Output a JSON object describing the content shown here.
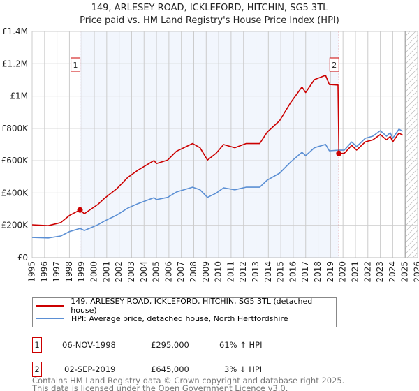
{
  "title_line1": "149, ARLESEY ROAD, ICKLEFORD, HITCHIN, SG5 3TL",
  "title_line2": "Price paid vs. HM Land Registry's House Price Index (HPI)",
  "chart_data": {
    "type": "line",
    "xlim": [
      1995,
      2026
    ],
    "ylim": [
      0,
      1400000
    ],
    "x_ticks": [
      1995,
      1996,
      1997,
      1998,
      1999,
      2000,
      2001,
      2002,
      2003,
      2004,
      2005,
      2006,
      2007,
      2008,
      2009,
      2010,
      2011,
      2012,
      2013,
      2014,
      2015,
      2016,
      2017,
      2018,
      2019,
      2020,
      2021,
      2022,
      2023,
      2024,
      2025,
      2026
    ],
    "y_ticks": [
      {
        "v": 0,
        "label": "£0"
      },
      {
        "v": 200000,
        "label": "£200K"
      },
      {
        "v": 400000,
        "label": "£400K"
      },
      {
        "v": 600000,
        "label": "£600K"
      },
      {
        "v": 800000,
        "label": "£800K"
      },
      {
        "v": 1000000,
        "label": "£1M"
      },
      {
        "v": 1200000,
        "label": "£1.2M"
      },
      {
        "v": 1400000,
        "label": "£1.4M"
      }
    ],
    "grid": true,
    "shaded_period": [
      1998.85,
      2019.67
    ],
    "forecast_hatch_from": 2025.0,
    "colors": {
      "price": "#cc0000",
      "hpi": "#5b8fd4",
      "shade": "#f2f6fd",
      "vline": "#e06060"
    },
    "series": [
      {
        "name": "149, ARLESEY ROAD, ICKLEFORD, HITCHIN, SG5 3TL (detached house)",
        "key": "price",
        "x": [
          1995.0,
          1996.3,
          1997.3,
          1998.0,
          1998.85,
          1999.2,
          2000.3,
          2000.8,
          2001.8,
          2002.7,
          2003.5,
          2004.8,
          2005.0,
          2005.9,
          2006.6,
          2007.9,
          2008.5,
          2009.1,
          2009.8,
          2010.4,
          2011.3,
          2012.2,
          2013.3,
          2013.9,
          2014.9,
          2015.8,
          2016.7,
          2017.0,
          2017.7,
          2018.6,
          2018.9,
          2019.6,
          2019.67,
          2020.1,
          2020.7,
          2021.1,
          2021.8,
          2022.4,
          2023.0,
          2023.5,
          2023.8,
          2024.0,
          2024.5,
          2024.8
        ],
        "y": [
          203000,
          198000,
          217000,
          261000,
          295000,
          272000,
          330000,
          366000,
          426000,
          497000,
          541000,
          601000,
          582000,
          604000,
          658000,
          706000,
          680000,
          604000,
          646000,
          700000,
          680000,
          706000,
          706000,
          776000,
          847000,
          961000,
          1056000,
          1022000,
          1102000,
          1128000,
          1071000,
          1068000,
          645000,
          645000,
          695000,
          666000,
          717000,
          729000,
          762000,
          729000,
          750000,
          717000,
          771000,
          758000
        ]
      },
      {
        "name": "HPI: Average price, detached house, North Hertfordshire",
        "key": "hpi",
        "x": [
          1995.0,
          1996.3,
          1997.3,
          1998.0,
          1998.85,
          1999.2,
          2000.3,
          2000.8,
          2001.8,
          2002.7,
          2003.5,
          2004.8,
          2005.0,
          2005.9,
          2006.6,
          2007.9,
          2008.5,
          2009.1,
          2009.8,
          2010.4,
          2011.3,
          2012.2,
          2013.3,
          2013.9,
          2014.9,
          2015.8,
          2016.7,
          2017.0,
          2017.7,
          2018.6,
          2018.9,
          2019.67,
          2020.1,
          2020.7,
          2021.1,
          2021.8,
          2022.4,
          2023.0,
          2023.5,
          2023.8,
          2024.0,
          2024.5,
          2024.8
        ],
        "y": [
          125000,
          122000,
          134000,
          161000,
          181000,
          168000,
          204000,
          226000,
          263000,
          307000,
          334000,
          371000,
          359000,
          373000,
          406000,
          436000,
          420000,
          373000,
          399000,
          432000,
          420000,
          436000,
          436000,
          479000,
          523000,
          593000,
          652000,
          631000,
          680000,
          701000,
          661000,
          665000,
          665000,
          716000,
          687000,
          739000,
          752000,
          786000,
          752000,
          773000,
          739000,
          795000,
          782000
        ]
      }
    ],
    "sales": [
      {
        "label": "1",
        "x": 1998.85,
        "y": 295000
      },
      {
        "label": "2",
        "x": 2019.67,
        "y": 645000
      }
    ]
  },
  "legend": {
    "price_label": "149, ARLESEY ROAD, ICKLEFORD, HITCHIN, SG5 3TL (detached house)",
    "hpi_label": "HPI: Average price, detached house, North Hertfordshire"
  },
  "transactions": [
    {
      "num": "1",
      "date": "06-NOV-1998",
      "price": "£295,000",
      "hpi": "61% ↑ HPI"
    },
    {
      "num": "2",
      "date": "02-SEP-2019",
      "price": "£645,000",
      "hpi": "3% ↓ HPI"
    }
  ],
  "footer_line1": "Contains HM Land Registry data © Crown copyright and database right 2025.",
  "footer_line2": "This data is licensed under the Open Government Licence v3.0."
}
